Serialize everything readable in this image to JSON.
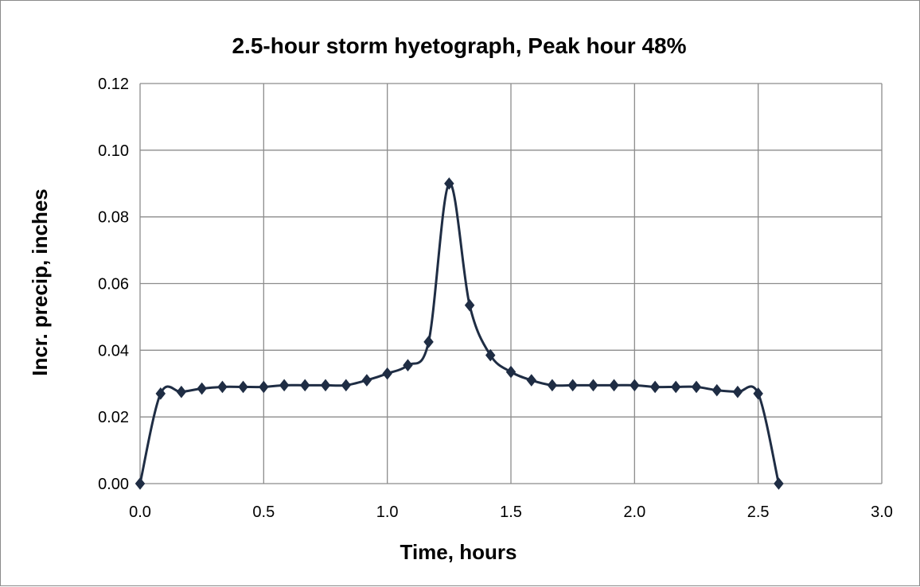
{
  "chart_data": {
    "type": "line",
    "title": "2.5-hour storm hyetograph, Peak hour 48%",
    "xlabel": "Time, hours",
    "ylabel": "Incr. precip, inches",
    "xlim": [
      0.0,
      3.0
    ],
    "ylim": [
      0.0,
      0.12
    ],
    "x_ticks": [
      "0.0",
      "0.5",
      "1.0",
      "1.5",
      "2.0",
      "2.5",
      "3.0"
    ],
    "y_ticks": [
      "0.00",
      "0.02",
      "0.04",
      "0.06",
      "0.08",
      "0.10",
      "0.12"
    ],
    "grid": true,
    "legend": "none",
    "line_style": "smooth",
    "marker": "diamond",
    "colors": {
      "series": "#1f2d44",
      "grid": "#8c8c8c"
    },
    "series": [
      {
        "x": [
          0.0,
          0.083,
          0.167,
          0.25,
          0.333,
          0.417,
          0.5,
          0.583,
          0.667,
          0.75,
          0.833,
          0.917,
          1.0,
          1.083,
          1.167,
          1.25,
          1.333,
          1.417,
          1.5,
          1.583,
          1.667,
          1.75,
          1.833,
          1.917,
          2.0,
          2.083,
          2.167,
          2.25,
          2.333,
          2.417,
          2.5,
          2.583
        ],
        "y": [
          0.0,
          0.027,
          0.0275,
          0.0285,
          0.029,
          0.029,
          0.029,
          0.0295,
          0.0295,
          0.0295,
          0.0295,
          0.031,
          0.033,
          0.0355,
          0.0425,
          0.09,
          0.0535,
          0.0385,
          0.0335,
          0.031,
          0.0295,
          0.0295,
          0.0295,
          0.0295,
          0.0295,
          0.029,
          0.029,
          0.029,
          0.028,
          0.0275,
          0.027,
          0.0
        ]
      }
    ]
  }
}
